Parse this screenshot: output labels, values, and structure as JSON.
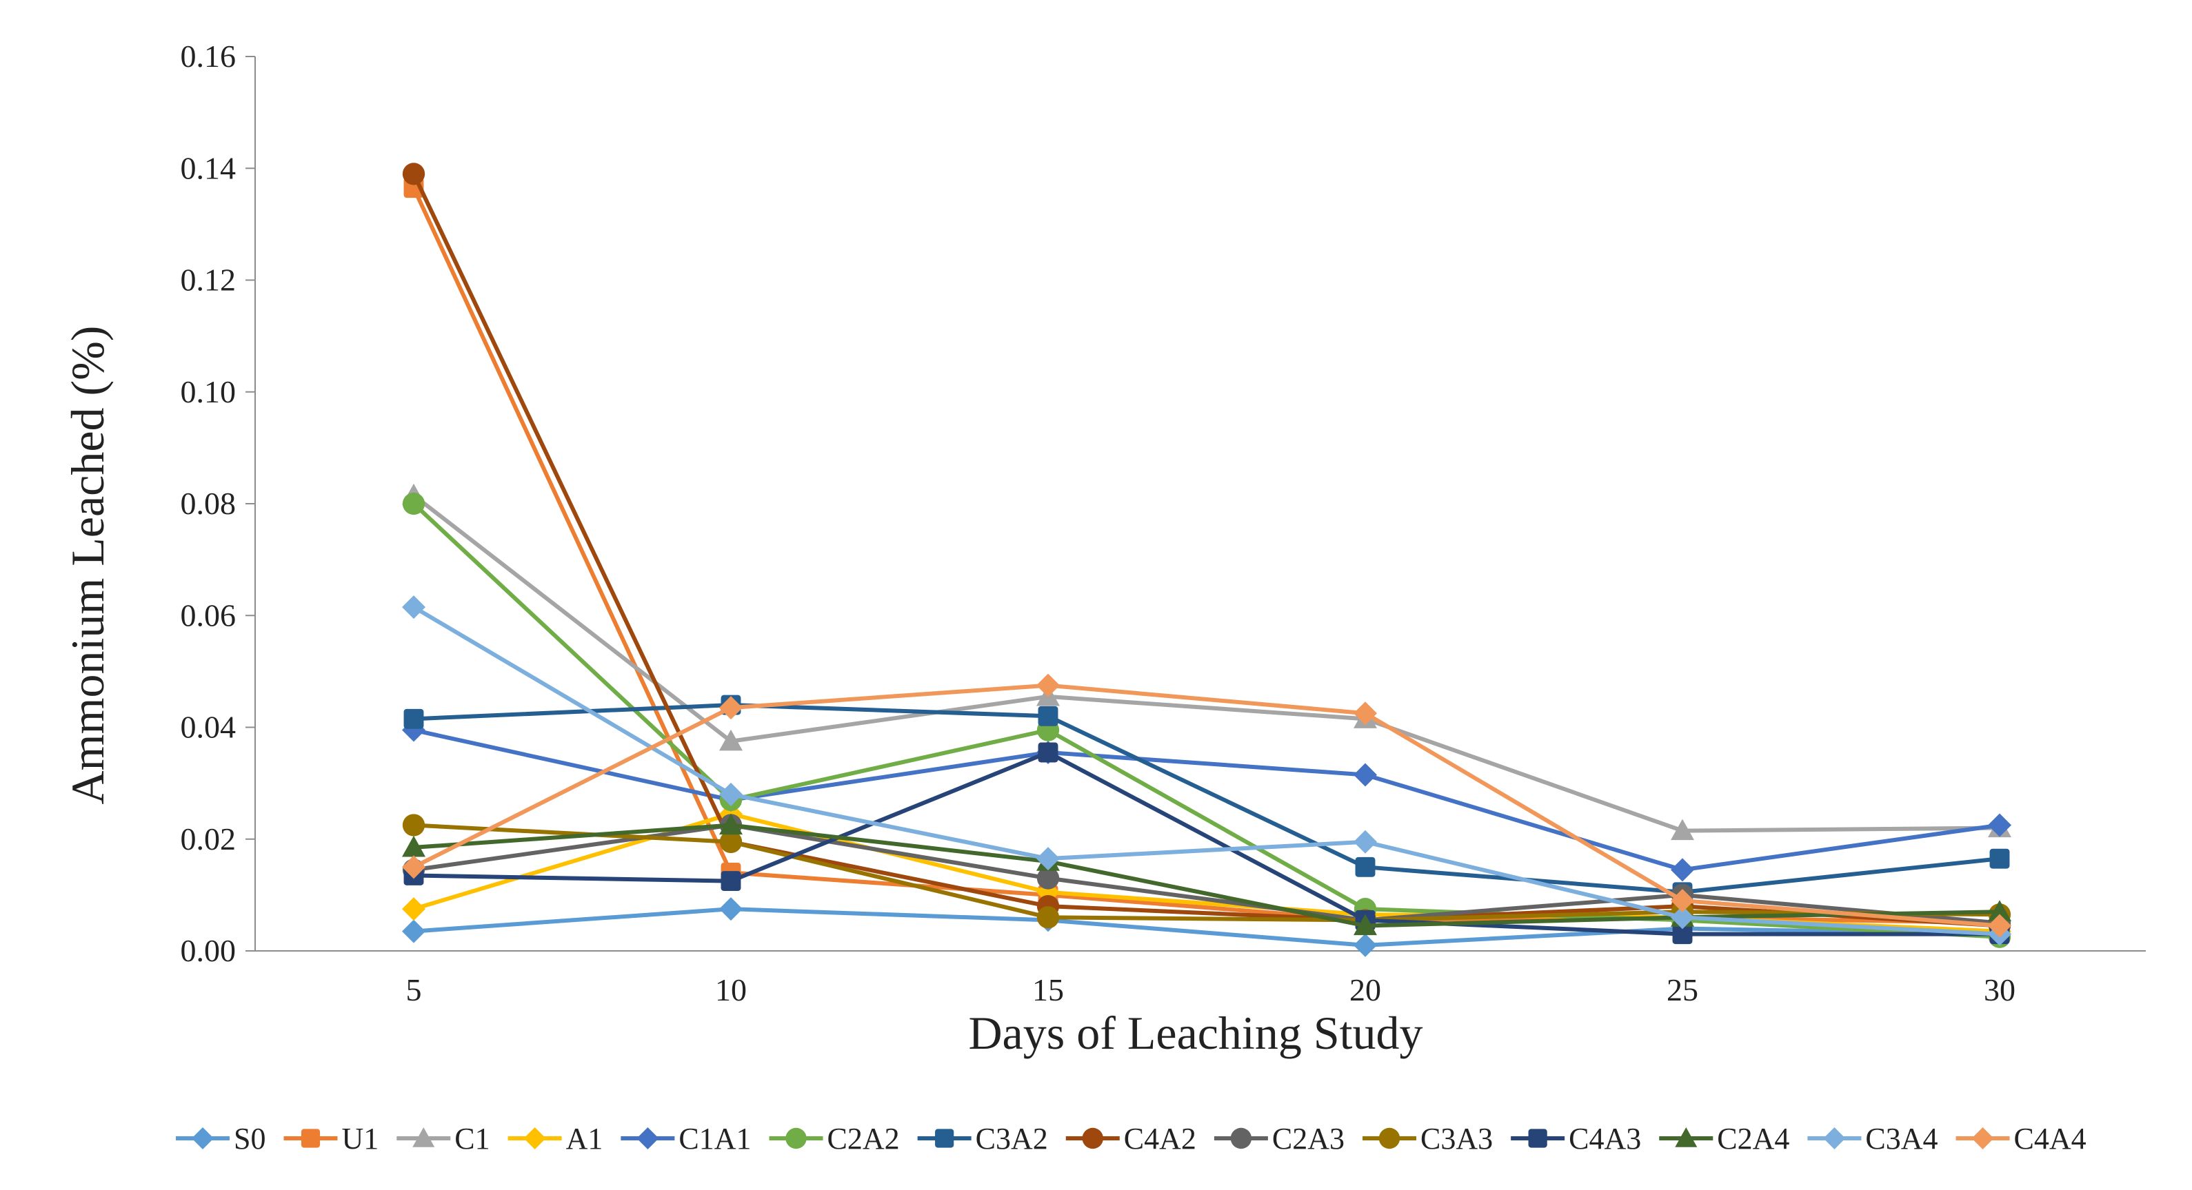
{
  "chart_data": {
    "type": "line",
    "title": "",
    "xlabel": "Days of Leaching Study",
    "ylabel": "Ammonium Leached (%)",
    "x": [
      5,
      10,
      15,
      20,
      25,
      30
    ],
    "x_tick_labels": [
      "5",
      "10",
      "15",
      "20",
      "25",
      "30"
    ],
    "ylim": [
      0,
      0.16
    ],
    "y_ticks": [
      0,
      0.02,
      0.04,
      0.06,
      0.08,
      0.1,
      0.12,
      0.14,
      0.16
    ],
    "y_tick_labels": [
      "0.00",
      "0.02",
      "0.04",
      "0.06",
      "0.08",
      "0.10",
      "0.12",
      "0.14",
      "0.16"
    ],
    "grid": false,
    "legend_position": "bottom",
    "series": [
      {
        "name": "S0",
        "color": "#5b9bd5",
        "marker": "diamond",
        "values": [
          0.0035,
          0.0075,
          0.0055,
          0.001,
          0.004,
          0.003
        ]
      },
      {
        "name": "U1",
        "color": "#ed7d31",
        "marker": "square",
        "values": [
          0.1365,
          0.014,
          0.01,
          0.0055,
          0.006,
          0.005
        ]
      },
      {
        "name": "C1",
        "color": "#a5a5a5",
        "marker": "triangle",
        "values": [
          0.0815,
          0.0375,
          0.0455,
          0.0415,
          0.0215,
          0.022
        ]
      },
      {
        "name": "A1",
        "color": "#ffc000",
        "marker": "diamond",
        "values": [
          0.0075,
          0.0245,
          0.0105,
          0.0065,
          0.006,
          0.0035
        ]
      },
      {
        "name": "C1A1",
        "color": "#4472c4",
        "marker": "diamond",
        "values": [
          0.0395,
          0.027,
          0.0355,
          0.0315,
          0.0145,
          0.0225
        ]
      },
      {
        "name": "C2A2",
        "color": "#70ad47",
        "marker": "circle",
        "values": [
          0.08,
          0.027,
          0.0395,
          0.0075,
          0.0055,
          0.0025
        ]
      },
      {
        "name": "C3A2",
        "color": "#255e91",
        "marker": "square",
        "values": [
          0.0415,
          0.044,
          0.042,
          0.015,
          0.0105,
          0.0165
        ]
      },
      {
        "name": "C4A2",
        "color": "#9e480e",
        "marker": "circle",
        "values": [
          0.139,
          0.0195,
          0.008,
          0.0055,
          0.008,
          0.0045
        ]
      },
      {
        "name": "C2A3",
        "color": "#636363",
        "marker": "circle",
        "values": [
          0.0145,
          0.0225,
          0.013,
          0.0055,
          0.01,
          0.005
        ]
      },
      {
        "name": "C3A3",
        "color": "#997300",
        "marker": "circle",
        "values": [
          0.0225,
          0.0195,
          0.006,
          0.0055,
          0.007,
          0.0065
        ]
      },
      {
        "name": "C4A3",
        "color": "#264478",
        "marker": "square",
        "values": [
          0.0135,
          0.0125,
          0.0355,
          0.0055,
          0.003,
          0.003
        ]
      },
      {
        "name": "C2A4",
        "color": "#43682b",
        "marker": "triangle",
        "values": [
          0.0185,
          0.0225,
          0.016,
          0.0045,
          0.006,
          0.007
        ]
      },
      {
        "name": "C3A4",
        "color": "#7cafdd",
        "marker": "diamond",
        "values": [
          0.0615,
          0.028,
          0.0165,
          0.0195,
          0.006,
          0.003
        ]
      },
      {
        "name": "C4A4",
        "color": "#f1975a",
        "marker": "diamond",
        "values": [
          0.015,
          0.0435,
          0.0475,
          0.0425,
          0.009,
          0.0045
        ]
      }
    ]
  }
}
